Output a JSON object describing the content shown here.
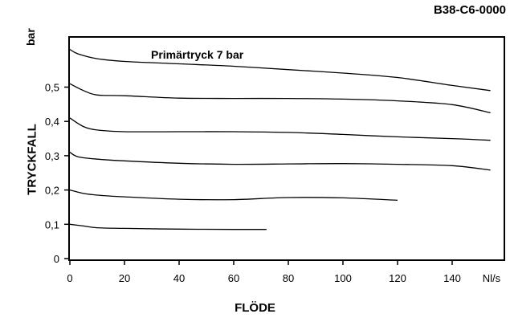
{
  "chart_data": {
    "type": "line",
    "code": "B38-C6-0000",
    "annotation": "Primärtryck 7 bar",
    "xlabel": "FLÖDE",
    "xunit": "Nl/s",
    "ylabel": "TRYCKFALL",
    "yunit": "bar",
    "xlim": [
      0,
      160
    ],
    "ylim": [
      0,
      0.62
    ],
    "xticks": [
      "0",
      "20",
      "40",
      "60",
      "80",
      "100",
      "120",
      "140"
    ],
    "xtick_values": [
      0,
      20,
      40,
      60,
      80,
      100,
      120,
      140
    ],
    "yticks": [
      "0",
      "0,1",
      "0,2",
      "0,3",
      "0,4",
      "0,5"
    ],
    "ytick_values": [
      0,
      0.1,
      0.2,
      0.3,
      0.4,
      0.5
    ],
    "grid": false,
    "series": [
      {
        "x": [
          0,
          5,
          10,
          20,
          40,
          60,
          72
        ],
        "y": [
          0.1,
          0.095,
          0.09,
          0.088,
          0.086,
          0.085,
          0.085
        ]
      },
      {
        "x": [
          0,
          5,
          10,
          20,
          40,
          60,
          80,
          100,
          120
        ],
        "y": [
          0.2,
          0.19,
          0.185,
          0.18,
          0.173,
          0.172,
          0.178,
          0.177,
          0.17
        ]
      },
      {
        "x": [
          0,
          3,
          10,
          20,
          40,
          60,
          80,
          100,
          120,
          140,
          154
        ],
        "y": [
          0.31,
          0.297,
          0.29,
          0.285,
          0.278,
          0.275,
          0.276,
          0.277,
          0.275,
          0.271,
          0.258
        ]
      },
      {
        "x": [
          0,
          5,
          10,
          20,
          40,
          60,
          80,
          100,
          120,
          140,
          154
        ],
        "y": [
          0.41,
          0.385,
          0.375,
          0.37,
          0.37,
          0.37,
          0.368,
          0.362,
          0.355,
          0.35,
          0.345
        ]
      },
      {
        "x": [
          0,
          5,
          10,
          20,
          40,
          60,
          80,
          100,
          120,
          140,
          154
        ],
        "y": [
          0.51,
          0.49,
          0.477,
          0.475,
          0.468,
          0.467,
          0.467,
          0.465,
          0.46,
          0.449,
          0.425
        ]
      },
      {
        "x": [
          0,
          3,
          10,
          20,
          40,
          60,
          80,
          100,
          120,
          140,
          154
        ],
        "y": [
          0.61,
          0.597,
          0.583,
          0.575,
          0.568,
          0.561,
          0.551,
          0.541,
          0.528,
          0.505,
          0.49
        ]
      }
    ]
  }
}
